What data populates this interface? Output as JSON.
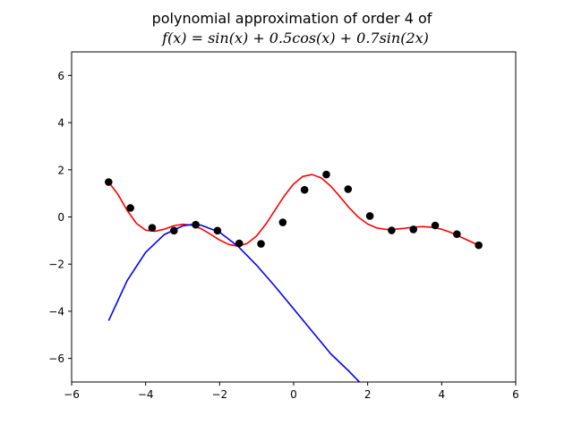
{
  "chart_data": {
    "type": "line",
    "title_line1": "polynomial approximation of order 4 of",
    "title_line2": "f(x) = sin(x) + 0.5cos(x) + 0.7sin(2x)",
    "xlabel": "",
    "ylabel": "",
    "xlim": [
      -6,
      6
    ],
    "ylim": [
      -7,
      7
    ],
    "xticks": [
      -6,
      -4,
      -2,
      0,
      2,
      4,
      6
    ],
    "yticks": [
      -6,
      -4,
      -2,
      0,
      2,
      4,
      6
    ],
    "xtick_labels": [
      "−6",
      "−4",
      "−2",
      "0",
      "2",
      "4",
      "6"
    ],
    "ytick_labels": [
      "−6",
      "−4",
      "−2",
      "0",
      "2",
      "4",
      "6"
    ],
    "grid": false,
    "series": [
      {
        "kind": "line",
        "color": "#ff0000",
        "x": [
          -5.0,
          -4.75,
          -4.5,
          -4.25,
          -4.0,
          -3.75,
          -3.5,
          -3.25,
          -3.0,
          -2.75,
          -2.5,
          -2.25,
          -2.0,
          -1.75,
          -1.5,
          -1.25,
          -1.0,
          -0.75,
          -0.5,
          -0.25,
          0.0,
          0.25,
          0.5,
          0.75,
          1.0,
          1.25,
          1.5,
          1.75,
          2.0,
          2.25,
          2.5,
          2.75,
          3.0,
          3.25,
          3.5,
          3.75,
          4.0,
          4.25,
          4.5,
          4.75,
          5.0
        ],
        "y": [
          1.48,
          0.96,
          0.28,
          -0.27,
          -0.56,
          -0.61,
          -0.52,
          -0.38,
          -0.31,
          -0.35,
          -0.5,
          -0.73,
          -0.98,
          -1.17,
          -1.24,
          -1.12,
          -0.8,
          -0.3,
          0.3,
          0.9,
          1.4,
          1.72,
          1.8,
          1.65,
          1.31,
          0.86,
          0.39,
          -0.01,
          -0.3,
          -0.47,
          -0.53,
          -0.52,
          -0.48,
          -0.43,
          -0.41,
          -0.44,
          -0.52,
          -0.66,
          -0.84,
          -1.02,
          -1.2
        ]
      },
      {
        "kind": "scatter",
        "color": "#000000",
        "x": [
          -5.0,
          -4.412,
          -3.824,
          -3.235,
          -2.647,
          -2.059,
          -1.471,
          -0.882,
          -0.294,
          0.294,
          0.882,
          1.471,
          2.059,
          2.647,
          3.235,
          3.824,
          4.412,
          5.0
        ],
        "y": [
          1.48,
          0.38,
          -0.46,
          -0.58,
          -0.33,
          -0.58,
          -1.12,
          -1.14,
          -0.23,
          1.15,
          1.8,
          1.18,
          0.04,
          -0.57,
          -0.53,
          -0.36,
          -0.73,
          -1.2
        ]
      },
      {
        "kind": "line",
        "color": "#0000ff",
        "x": [
          -5.0,
          -4.5,
          -4.0,
          -3.5,
          -3.0,
          -2.75,
          -2.5,
          -2.0,
          -1.5,
          -1.0,
          -0.5,
          0.0,
          0.5,
          1.0,
          1.5,
          1.9
        ],
        "y": [
          -4.4,
          -2.7,
          -1.5,
          -0.75,
          -0.38,
          -0.32,
          -0.35,
          -0.65,
          -1.25,
          -2.05,
          -2.95,
          -3.9,
          -4.85,
          -5.8,
          -6.55,
          -7.2
        ]
      }
    ]
  }
}
